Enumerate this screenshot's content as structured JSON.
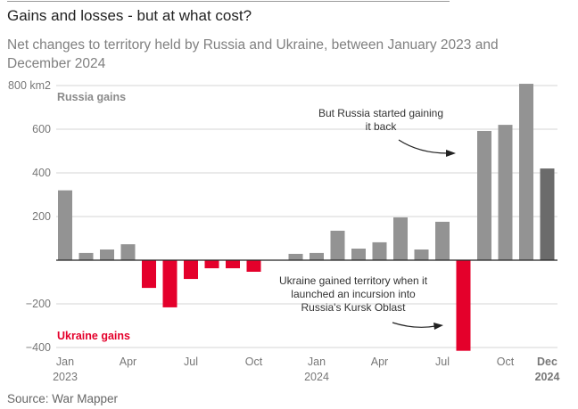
{
  "header": {
    "title": "Gains and losses - but at what cost?",
    "subtitle": "Net changes to territory held by Russia and Ukraine, between January 2023 and December 2024"
  },
  "source": "Source: War Mapper",
  "colors": {
    "russia": "#939393",
    "ukraine": "#e4002b",
    "latest": "#6b6b6b",
    "grid": "#d6d6d6",
    "zero": "#222222"
  },
  "chart_data": {
    "type": "bar",
    "title": "Gains and losses - but at what cost?",
    "subtitle": "Net changes to territory held by Russia and Ukraine, between January 2023 and December 2024",
    "xlabel": "",
    "ylabel": "km2",
    "ylim": [
      -420,
      820
    ],
    "yticks": [
      -400,
      -200,
      0,
      200,
      400,
      600,
      800
    ],
    "ytick_labels": [
      "−400",
      "−200",
      "",
      "200",
      "400",
      "600",
      "800 km2"
    ],
    "categories": [
      "Jan 2023",
      "Feb 2023",
      "Mar 2023",
      "Apr 2023",
      "May 2023",
      "Jun 2023",
      "Jul 2023",
      "Aug 2023",
      "Sep 2023",
      "Oct 2023",
      "Nov 2023",
      "Dec 2023",
      "Jan 2024",
      "Feb 2024",
      "Mar 2024",
      "Apr 2024",
      "May 2024",
      "Jun 2024",
      "Jul 2024",
      "Aug 2024",
      "Sep 2024",
      "Oct 2024",
      "Nov 2024",
      "Dec 2024"
    ],
    "values": [
      320,
      33,
      49,
      73,
      -127,
      -216,
      -86,
      -37,
      -37,
      -53,
      0,
      29,
      33,
      135,
      53,
      82,
      196,
      49,
      176,
      -415,
      592,
      620,
      808,
      420
    ],
    "xtick_labels": [
      {
        "index": 0,
        "line1": "Jan",
        "line2": "2023"
      },
      {
        "index": 3,
        "line1": "Apr",
        "line2": ""
      },
      {
        "index": 6,
        "line1": "Jul",
        "line2": ""
      },
      {
        "index": 9,
        "line1": "Oct",
        "line2": ""
      },
      {
        "index": 12,
        "line1": "Jan",
        "line2": "2024"
      },
      {
        "index": 15,
        "line1": "Apr",
        "line2": ""
      },
      {
        "index": 18,
        "line1": "Jul",
        "line2": ""
      },
      {
        "index": 21,
        "line1": "Oct",
        "line2": ""
      },
      {
        "index": 23,
        "line1": "Dec",
        "line2": "2024",
        "bold": true
      }
    ],
    "legend": {
      "russia": "Russia gains",
      "ukraine": "Ukraine gains"
    },
    "annotations": [
      {
        "lines": [
          "But Russia started gaining",
          "it back"
        ],
        "points_to": "Sep 2024"
      },
      {
        "lines": [
          "Ukraine gained territory when it",
          "launched an incursion into",
          "Russia's Kursk Oblast"
        ],
        "points_to": "Aug 2024"
      }
    ],
    "grid": true
  }
}
